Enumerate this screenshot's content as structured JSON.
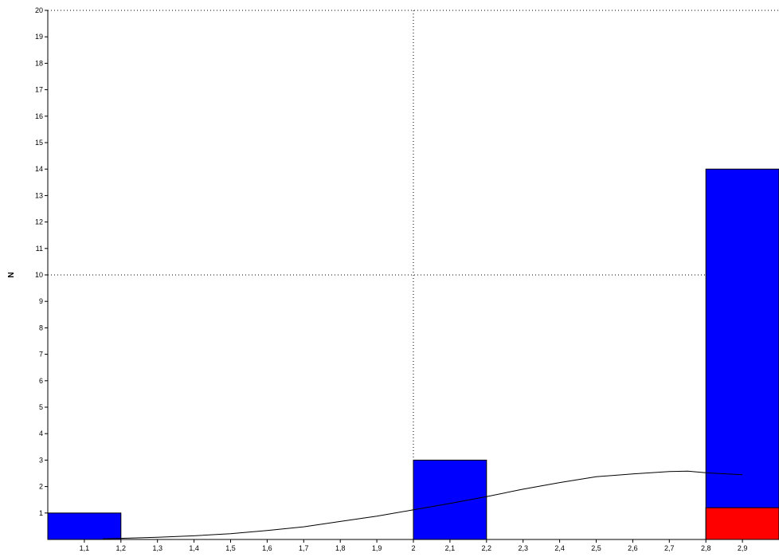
{
  "chart_data": {
    "type": "bar",
    "title": "",
    "xlabel": "",
    "ylabel": "N",
    "xlim": [
      1.0,
      3.0
    ],
    "ylim": [
      0,
      20
    ],
    "x_ticks": [
      "1,1",
      "1,2",
      "1,3",
      "1,4",
      "1,5",
      "1,6",
      "1,7",
      "1,8",
      "1,9",
      "2",
      "2,1",
      "2,2",
      "2,3",
      "2,4",
      "2,5",
      "2,6",
      "2,7",
      "2,8",
      "2,9"
    ],
    "x_tick_values": [
      1.1,
      1.2,
      1.3,
      1.4,
      1.5,
      1.6,
      1.7,
      1.8,
      1.9,
      2.0,
      2.1,
      2.2,
      2.3,
      2.4,
      2.5,
      2.6,
      2.7,
      2.8,
      2.9
    ],
    "y_ticks": [
      "1",
      "2",
      "3",
      "4",
      "5",
      "6",
      "7",
      "8",
      "9",
      "10",
      "11",
      "12",
      "13",
      "14",
      "15",
      "16",
      "17",
      "18",
      "19",
      "20"
    ],
    "grid": {
      "x": [
        2.0
      ],
      "y": [
        10,
        20
      ],
      "style": "dotted"
    },
    "series": [
      {
        "color": "#0000ff",
        "bins": [
          {
            "x0": 1.0,
            "x1": 1.2,
            "value": 1
          },
          {
            "x0": 2.0,
            "x1": 2.2,
            "value": 3
          },
          {
            "x0": 2.8,
            "x1": 3.0,
            "value": 14
          }
        ]
      },
      {
        "color": "#ff0000",
        "bins": [
          {
            "x0": 2.8,
            "x1": 3.0,
            "value": 1.2
          }
        ]
      }
    ],
    "curve": {
      "color": "#000000",
      "points": [
        [
          1.15,
          0.02
        ],
        [
          1.3,
          0.08
        ],
        [
          1.4,
          0.14
        ],
        [
          1.5,
          0.22
        ],
        [
          1.6,
          0.34
        ],
        [
          1.7,
          0.48
        ],
        [
          1.8,
          0.68
        ],
        [
          1.9,
          0.88
        ],
        [
          2.0,
          1.12
        ],
        [
          2.1,
          1.36
        ],
        [
          2.2,
          1.62
        ],
        [
          2.3,
          1.9
        ],
        [
          2.4,
          2.15
        ],
        [
          2.5,
          2.37
        ],
        [
          2.6,
          2.48
        ],
        [
          2.7,
          2.57
        ],
        [
          2.75,
          2.58
        ],
        [
          2.8,
          2.52
        ],
        [
          2.9,
          2.45
        ]
      ]
    }
  }
}
